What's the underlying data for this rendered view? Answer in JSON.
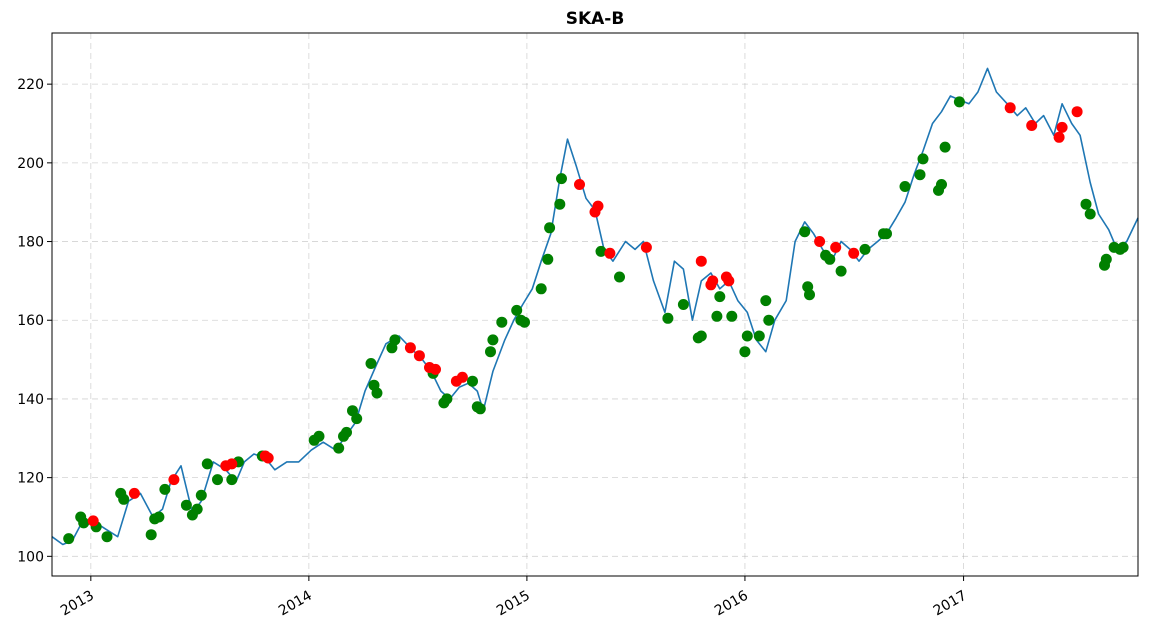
{
  "chart_data": {
    "type": "line",
    "title": "SKA-B",
    "xlabel": "",
    "ylabel": "",
    "xlim": [
      "2012-10-28",
      "2017-10-20"
    ],
    "ylim": [
      95,
      233
    ],
    "grid": true,
    "x_ticks": [
      "2013",
      "2014",
      "2015",
      "2016",
      "2017"
    ],
    "y_ticks": [
      100,
      120,
      140,
      160,
      180,
      200,
      220
    ],
    "colors": {
      "price": "#1f77b4",
      "buy": "#008000",
      "sell": "#ff0000"
    },
    "series": [
      {
        "type": "line",
        "x": [
          "2012-10-28",
          "2012-11-15",
          "2012-12-01",
          "2012-12-15",
          "2013-01-05",
          "2013-01-25",
          "2013-02-15",
          "2013-03-05",
          "2013-03-25",
          "2013-04-15",
          "2013-05-01",
          "2013-05-15",
          "2013-06-01",
          "2013-06-20",
          "2013-07-05",
          "2013-07-25",
          "2013-08-15",
          "2013-09-01",
          "2013-09-15",
          "2013-10-01",
          "2013-10-20",
          "2013-11-05",
          "2013-11-25",
          "2013-12-15",
          "2014-01-05",
          "2014-01-25",
          "2014-02-15",
          "2014-03-01",
          "2014-03-20",
          "2014-04-05",
          "2014-04-25",
          "2014-05-10",
          "2014-06-01",
          "2014-06-20",
          "2014-07-10",
          "2014-07-25",
          "2014-08-10",
          "2014-08-25",
          "2014-09-10",
          "2014-09-25",
          "2014-10-10",
          "2014-10-20",
          "2014-11-05",
          "2014-11-25",
          "2014-12-10",
          "2014-12-25",
          "2015-01-10",
          "2015-01-25",
          "2015-02-10",
          "2015-02-25",
          "2015-03-10",
          "2015-03-25",
          "2015-04-10",
          "2015-04-25",
          "2015-05-10",
          "2015-05-25",
          "2015-06-15",
          "2015-07-01",
          "2015-07-15",
          "2015-08-01",
          "2015-08-20",
          "2015-09-05",
          "2015-09-20",
          "2015-10-05",
          "2015-10-20",
          "2015-11-05",
          "2015-11-20",
          "2015-12-05",
          "2015-12-20",
          "2016-01-05",
          "2016-01-20",
          "2016-02-05",
          "2016-02-20",
          "2016-03-10",
          "2016-03-25",
          "2016-04-10",
          "2016-04-25",
          "2016-05-10",
          "2016-05-25",
          "2016-06-10",
          "2016-06-25",
          "2016-07-10",
          "2016-07-25",
          "2016-08-10",
          "2016-08-25",
          "2016-09-10",
          "2016-09-25",
          "2016-10-10",
          "2016-10-25",
          "2016-11-10",
          "2016-11-25",
          "2016-12-10",
          "2016-12-25",
          "2017-01-10",
          "2017-01-25",
          "2017-02-10",
          "2017-02-25",
          "2017-03-15",
          "2017-04-01",
          "2017-04-15",
          "2017-05-01",
          "2017-05-15",
          "2017-06-01",
          "2017-06-15",
          "2017-07-01",
          "2017-07-15",
          "2017-08-01",
          "2017-08-15",
          "2017-09-01",
          "2017-09-15",
          "2017-10-01",
          "2017-10-20"
        ],
        "values": [
          105,
          103,
          104,
          108,
          109,
          107,
          105,
          114,
          116,
          110,
          112,
          119,
          123,
          111,
          114,
          124,
          122,
          119,
          124,
          126,
          125,
          122,
          124,
          124,
          127,
          129,
          127,
          130,
          134,
          142,
          149,
          154,
          156,
          153,
          150,
          147,
          142,
          140,
          143,
          144,
          142,
          137,
          147,
          155,
          160,
          164,
          168,
          175,
          182,
          196,
          206,
          199,
          191,
          188,
          178,
          175,
          180,
          178,
          180,
          170,
          162,
          175,
          173,
          160,
          170,
          172,
          168,
          170,
          165,
          162,
          155,
          152,
          160,
          165,
          180,
          185,
          182,
          178,
          175,
          180,
          178,
          175,
          178,
          180,
          182,
          186,
          190,
          197,
          203,
          210,
          213,
          217,
          216,
          215,
          218,
          224,
          218,
          215,
          212,
          214,
          210,
          212,
          207,
          215,
          210,
          207,
          195,
          187,
          183,
          178,
          180,
          186
        ]
      },
      {
        "name": "",
        "type": "scatter",
        "role": "buy",
        "x": [
          "2012-11-25",
          "2012-12-15",
          "2012-12-20",
          "2013-01-10",
          "2013-01-28",
          "2013-02-20",
          "2013-02-25",
          "2013-04-12",
          "2013-04-18",
          "2013-04-25",
          "2013-05-05",
          "2013-06-10",
          "2013-06-20",
          "2013-06-28",
          "2013-07-05",
          "2013-07-15",
          "2013-08-01",
          "2013-08-25",
          "2013-09-05",
          "2013-10-15",
          "2014-01-10",
          "2014-01-18",
          "2014-02-20",
          "2014-02-28",
          "2014-03-05",
          "2014-03-15",
          "2014-03-22",
          "2014-04-15",
          "2014-04-20",
          "2014-04-25",
          "2014-05-20",
          "2014-05-25",
          "2014-07-28",
          "2014-08-15",
          "2014-08-20",
          "2014-10-02",
          "2014-10-10",
          "2014-10-15",
          "2014-11-01",
          "2014-11-05",
          "2014-11-20",
          "2014-12-15",
          "2014-12-22",
          "2014-12-28",
          "2015-01-25",
          "2015-02-05",
          "2015-02-08",
          "2015-02-25",
          "2015-02-28",
          "2015-05-05",
          "2015-06-05",
          "2015-08-25",
          "2015-09-20",
          "2015-10-15",
          "2015-10-20",
          "2015-11-15",
          "2015-11-20",
          "2015-12-10",
          "2016-01-01",
          "2016-01-05",
          "2016-01-25",
          "2016-02-05",
          "2016-02-10",
          "2016-04-10",
          "2016-04-15",
          "2016-04-18",
          "2016-05-15",
          "2016-05-22",
          "2016-06-10",
          "2016-07-20",
          "2016-08-20",
          "2016-08-25",
          "2016-09-25",
          "2016-10-20",
          "2016-10-25",
          "2016-11-20",
          "2016-11-25",
          "2016-12-01",
          "2016-12-25",
          "2017-07-25",
          "2017-08-01",
          "2017-08-25",
          "2017-08-28",
          "2017-09-10",
          "2017-09-20",
          "2017-09-25"
        ],
        "values": [
          104.5,
          110,
          108.5,
          107.5,
          105,
          116,
          114.5,
          105.5,
          109.5,
          110,
          117,
          113,
          110.5,
          112,
          115.5,
          123.5,
          119.5,
          119.5,
          124,
          125.5,
          129.5,
          130.5,
          127.5,
          130.5,
          131.5,
          137,
          135,
          149,
          143.5,
          141.5,
          153,
          155,
          146.5,
          139,
          140,
          144.5,
          138,
          137.5,
          152,
          155,
          159.5,
          162.5,
          160,
          159.5,
          168,
          175.5,
          183.5,
          189.5,
          196,
          177.5,
          171,
          160.5,
          164,
          155.5,
          156,
          161,
          166,
          161,
          152,
          156,
          156,
          165,
          160,
          182.5,
          168.5,
          166.5,
          176.5,
          175.5,
          172.5,
          178,
          182,
          182,
          194,
          197,
          201,
          193,
          194.5,
          204,
          215.5,
          189.5,
          187,
          174,
          175.5,
          178.5,
          178,
          178.5
        ]
      },
      {
        "name": "",
        "type": "scatter",
        "role": "sell",
        "x": [
          "2013-01-05",
          "2013-03-15",
          "2013-05-20",
          "2013-08-15",
          "2013-08-25",
          "2013-10-20",
          "2013-10-25",
          "2014-06-20",
          "2014-07-05",
          "2014-07-22",
          "2014-08-01",
          "2014-09-05",
          "2014-09-15",
          "2015-03-30",
          "2015-04-25",
          "2015-04-30",
          "2015-05-20",
          "2015-07-20",
          "2015-10-20",
          "2015-11-05",
          "2015-11-08",
          "2015-12-01",
          "2015-12-05",
          "2016-05-05",
          "2016-06-01",
          "2016-07-01",
          "2017-03-20",
          "2017-04-25",
          "2017-06-10",
          "2017-06-15",
          "2017-07-10"
        ],
        "values": [
          109,
          116,
          119.5,
          123,
          123.5,
          125.5,
          125,
          153,
          151,
          148,
          147.5,
          144.5,
          145.5,
          194.5,
          187.5,
          189,
          177,
          178.5,
          175,
          169,
          170,
          171,
          170,
          180,
          178.5,
          177,
          214,
          209.5,
          206.5,
          209,
          213
        ]
      }
    ]
  }
}
